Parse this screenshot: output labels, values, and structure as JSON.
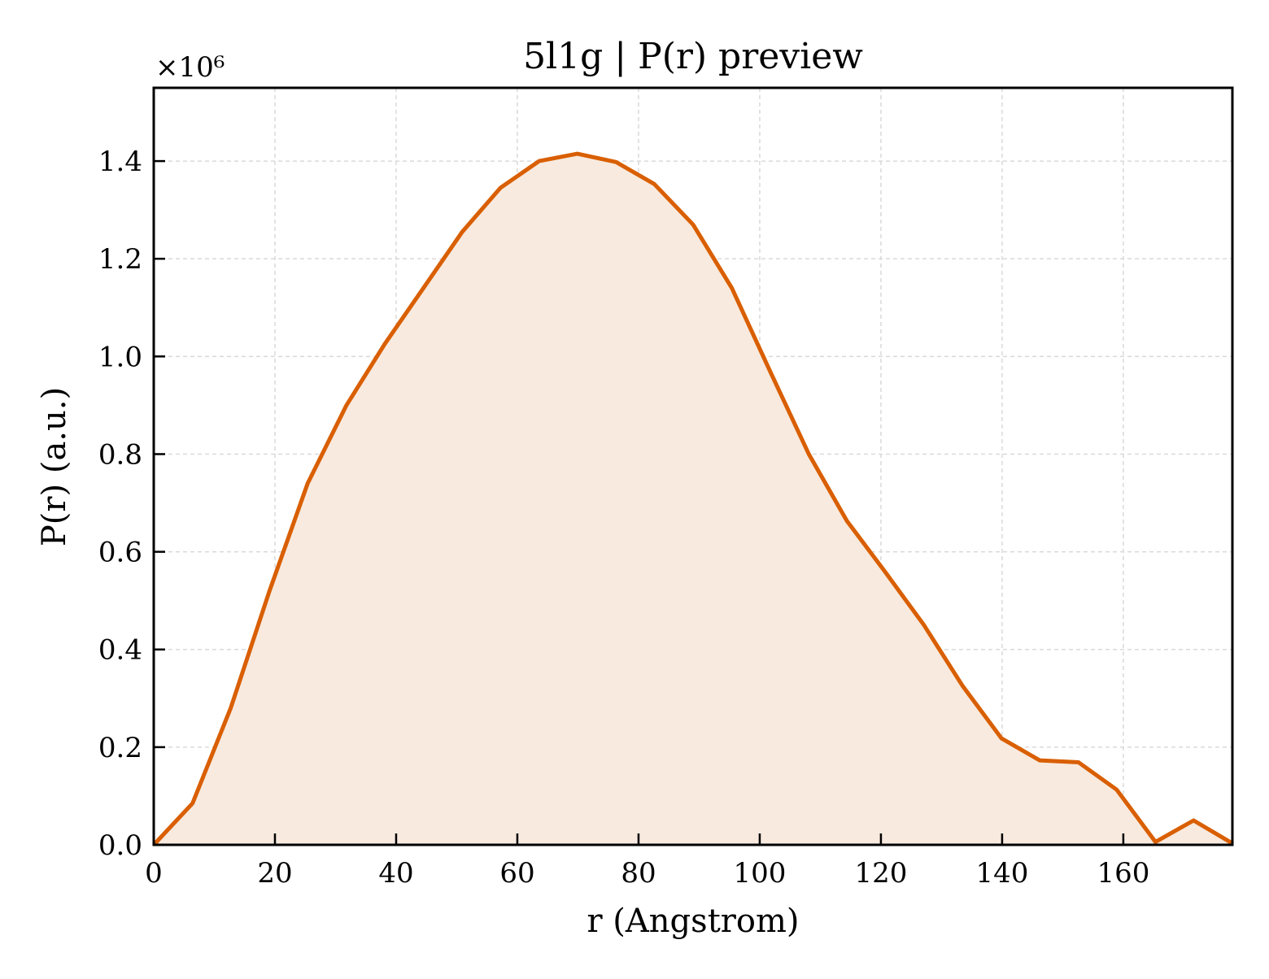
{
  "chart_data": {
    "type": "area",
    "title": "5l1g | P(r) preview",
    "xlabel": "r (Angstrom)",
    "ylabel": "P(r) (a.u.)",
    "y_multiplier_label": "×10⁶",
    "xlim": [
      0,
      178
    ],
    "ylim": [
      0,
      1.55
    ],
    "y_scale_factor": 1000000,
    "grid": true,
    "x_ticks": [
      0,
      20,
      40,
      60,
      80,
      100,
      120,
      140,
      160
    ],
    "x_tick_labels": [
      "0",
      "20",
      "40",
      "60",
      "80",
      "100",
      "120",
      "140",
      "160"
    ],
    "y_ticks": [
      0,
      0.2,
      0.4,
      0.6,
      0.8,
      1.0,
      1.2,
      1.4
    ],
    "y_tick_labels": [
      "0.0",
      "0.2",
      "0.4",
      "0.6",
      "0.8",
      "1.0",
      "1.2",
      "1.4"
    ],
    "series": [
      {
        "line_color": "#d95f02",
        "fill_color": "#f8eadf",
        "x": [
          0,
          6.4,
          12.7,
          19.1,
          25.4,
          31.8,
          38.1,
          44.5,
          50.9,
          57.2,
          63.6,
          69.9,
          76.3,
          82.6,
          89.0,
          95.4,
          101.7,
          108.1,
          114.4,
          120.8,
          127.1,
          133.5,
          139.9,
          146.2,
          152.6,
          158.9,
          165.3,
          171.6,
          178.0
        ],
        "y": [
          0.0,
          0.085,
          0.28,
          0.52,
          0.74,
          0.9,
          1.025,
          1.14,
          1.255,
          1.345,
          1.4,
          1.415,
          1.398,
          1.353,
          1.27,
          1.14,
          0.97,
          0.8,
          0.663,
          0.557,
          0.45,
          0.325,
          0.218,
          0.173,
          0.169,
          0.113,
          0.006,
          0.05,
          0.003
        ]
      }
    ]
  }
}
